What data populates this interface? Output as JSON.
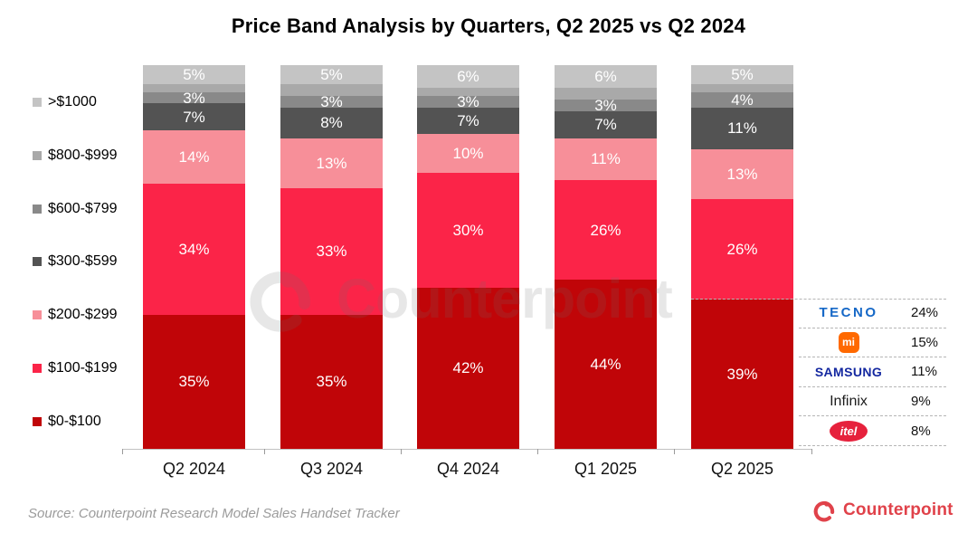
{
  "chart_data": {
    "type": "bar",
    "variant": "stacked-percent",
    "title": "Price Band Analysis by Quarters, Q2 2025 vs Q2 2024",
    "categories": [
      "Q2 2024",
      "Q3 2024",
      "Q4 2024",
      "Q1 2025",
      "Q2 2025"
    ],
    "series": [
      {
        "name": "$0-$100",
        "color": "#c00508",
        "values": [
          35,
          35,
          42,
          44,
          39
        ],
        "show_labels": true
      },
      {
        "name": "$100-$199",
        "color": "#fb2448",
        "values": [
          34,
          33,
          30,
          26,
          26
        ],
        "show_labels": true
      },
      {
        "name": "$200-$299",
        "color": "#f78f99",
        "values": [
          14,
          13,
          10,
          11,
          13
        ],
        "show_labels": true
      },
      {
        "name": "$300-$599",
        "color": "#535353",
        "values": [
          7,
          8,
          7,
          7,
          11
        ],
        "show_labels": true
      },
      {
        "name": "$600-$799",
        "color": "#898989",
        "values": [
          3,
          3,
          3,
          3,
          4
        ],
        "show_labels": true
      },
      {
        "name": "$800-$999",
        "color": "#a9a9a9",
        "values": [
          2,
          3,
          2,
          3,
          2
        ],
        "show_labels": false
      },
      {
        "name": ">$1000",
        "color": "#c4c4c4",
        "values": [
          5,
          5,
          6,
          6,
          5
        ],
        "show_labels": true
      }
    ],
    "ylim": [
      0,
      100
    ],
    "grid": false,
    "legend_position": "left",
    "legend_order_top_down": [
      ">$1000",
      "$800-$999",
      "$600-$799",
      "$300-$599",
      "$200-$299",
      "$100-$199",
      "$0-$100"
    ],
    "data_label_suffix": "%"
  },
  "brand_table": {
    "quarter": "Q2 2025",
    "rows": [
      {
        "brand": "TECNO",
        "share": "24%",
        "logo": "tecno",
        "color": "#1668c7"
      },
      {
        "brand": "mi",
        "share": "15%",
        "logo": "xiaomi",
        "color": "#ff6900"
      },
      {
        "brand": "SAMSUNG",
        "share": "11%",
        "logo": "samsung",
        "color": "#1428a0"
      },
      {
        "brand": "Infinix",
        "share": "9%",
        "logo": "infinix",
        "color": "#1c1c1c"
      },
      {
        "brand": "itel",
        "share": "8%",
        "logo": "itel",
        "color": "#e6213c"
      }
    ]
  },
  "watermark": {
    "text": "Counterpoint"
  },
  "footer": {
    "source": "Source: Counterpoint Research Model Sales Handset Tracker",
    "brand": "Counterpoint",
    "brand_color": "#e0424a"
  }
}
